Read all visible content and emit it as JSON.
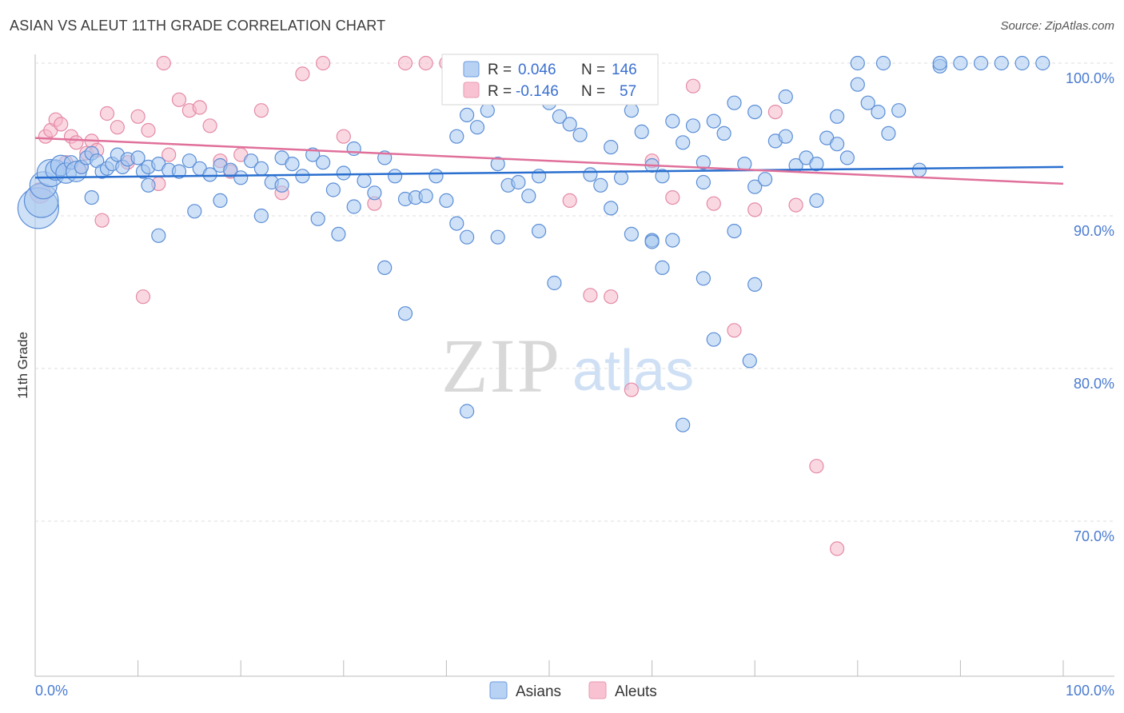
{
  "header": {
    "title": "ASIAN VS ALEUT 11TH GRADE CORRELATION CHART",
    "source": "Source: ZipAtlas.com"
  },
  "watermark": {
    "zip": "ZIP",
    "atlas": "atlas"
  },
  "legend_stats": {
    "asians": {
      "r_label": "R =",
      "r_value": "0.046",
      "n_label": "N =",
      "n_value": "146"
    },
    "aleuts": {
      "r_label": "R =",
      "r_value": "-0.146",
      "n_label": "N =",
      "n_value": "57"
    }
  },
  "legend_bottom": {
    "asians": "Asians",
    "aleuts": "Aleuts"
  },
  "colors": {
    "asians_fill": "#a8c8f0",
    "asians_stroke": "#5b8ed6",
    "asians_line": "#2a6fcf",
    "aleuts_fill": "#f6b8cb",
    "aleuts_stroke": "#e48aa6",
    "aleuts_line": "#e0709a",
    "tick_text": "#4a7bd0",
    "grid": "#dedede"
  },
  "chart_data": {
    "type": "scatter",
    "title": "ASIAN VS ALEUT 11TH GRADE CORRELATION CHART",
    "xlabel": "",
    "ylabel": "11th Grade",
    "xlim": [
      0,
      100
    ],
    "ylim": [
      60,
      100
    ],
    "x_ticks": [
      "0.0%",
      "100.0%"
    ],
    "y_ticks": [
      {
        "value": 100,
        "label": "100.0%"
      },
      {
        "value": 90,
        "label": "90.0%"
      },
      {
        "value": 80,
        "label": "80.0%"
      },
      {
        "value": 70,
        "label": "70.0%"
      }
    ],
    "grid": true,
    "legend_placement": "bottom-center",
    "series": [
      {
        "name": "Asians",
        "r": 0.046,
        "n": 146,
        "trend": [
          [
            0,
            92.5
          ],
          [
            100,
            93.2
          ]
        ],
        "points": [
          [
            0.3,
            90.5,
            3
          ],
          [
            0.6,
            91.0,
            2.5
          ],
          [
            0.8,
            92.0,
            2
          ],
          [
            1.5,
            92.8,
            2
          ],
          [
            2,
            93.0,
            1.5
          ],
          [
            2.5,
            93.3,
            1.5
          ],
          [
            3,
            92.8,
            1.5
          ],
          [
            3.5,
            93.5,
            1
          ],
          [
            4,
            92.9,
            1.5
          ],
          [
            4.5,
            93.2,
            1
          ],
          [
            5,
            93.8,
            1
          ],
          [
            5.5,
            94.1,
            1
          ],
          [
            6,
            93.6,
            1
          ],
          [
            6.5,
            92.9,
            1
          ],
          [
            7,
            93.1,
            1
          ],
          [
            7.5,
            93.4,
            1
          ],
          [
            8,
            94.0,
            1
          ],
          [
            8.5,
            93.2,
            1
          ],
          [
            9,
            93.7,
            1
          ],
          [
            10,
            93.8,
            1
          ],
          [
            10.5,
            92.9,
            1
          ],
          [
            11,
            93.2,
            1
          ],
          [
            12,
            93.4,
            1
          ],
          [
            13,
            93.0,
            1
          ],
          [
            14,
            92.9,
            1
          ],
          [
            15,
            93.6,
            1
          ],
          [
            16,
            93.1,
            1
          ],
          [
            17,
            92.7,
            1
          ],
          [
            18,
            93.3,
            1
          ],
          [
            19,
            93.0,
            1
          ],
          [
            20,
            92.5,
            1
          ],
          [
            21,
            93.6,
            1
          ],
          [
            22,
            93.1,
            1
          ],
          [
            23,
            92.2,
            1
          ],
          [
            24,
            93.8,
            1
          ],
          [
            25,
            93.4,
            1
          ],
          [
            26,
            92.6,
            1
          ],
          [
            27,
            94.0,
            1
          ],
          [
            28,
            93.5,
            1
          ],
          [
            29,
            91.7,
            1
          ],
          [
            30,
            92.8,
            1
          ],
          [
            31,
            94.4,
            1
          ],
          [
            32,
            92.3,
            1
          ],
          [
            33,
            91.5,
            1
          ],
          [
            34,
            93.8,
            1
          ],
          [
            35,
            92.6,
            1
          ],
          [
            36,
            91.1,
            1
          ],
          [
            37,
            91.2,
            1
          ],
          [
            38,
            91.3,
            1
          ],
          [
            39,
            92.6,
            1
          ],
          [
            40,
            91.0,
            1
          ],
          [
            41,
            95.2,
            1
          ],
          [
            42,
            96.6,
            1
          ],
          [
            43,
            95.8,
            1
          ],
          [
            44,
            96.9,
            1
          ],
          [
            45,
            93.4,
            1
          ],
          [
            46,
            92.0,
            1
          ],
          [
            47,
            92.2,
            1
          ],
          [
            48,
            91.3,
            1
          ],
          [
            49,
            92.6,
            1
          ],
          [
            50,
            97.4,
            1
          ],
          [
            51,
            96.5,
            1
          ],
          [
            52,
            96.0,
            1
          ],
          [
            53,
            95.3,
            1
          ],
          [
            54,
            92.7,
            1
          ],
          [
            55,
            92.0,
            1
          ],
          [
            56,
            94.5,
            1
          ],
          [
            57,
            92.5,
            1
          ],
          [
            58,
            96.9,
            1
          ],
          [
            59,
            95.5,
            1
          ],
          [
            60,
            93.3,
            1
          ],
          [
            61,
            92.6,
            1
          ],
          [
            62,
            96.2,
            1
          ],
          [
            63,
            94.8,
            1
          ],
          [
            64,
            95.9,
            1
          ],
          [
            65,
            92.2,
            1
          ],
          [
            66,
            96.2,
            1
          ],
          [
            67,
            95.4,
            1
          ],
          [
            68,
            97.4,
            1
          ],
          [
            69,
            93.4,
            1
          ],
          [
            70,
            91.9,
            1
          ],
          [
            71,
            92.4,
            1
          ],
          [
            72,
            94.9,
            1
          ],
          [
            73,
            97.8,
            1
          ],
          [
            74,
            93.3,
            1
          ],
          [
            75,
            93.8,
            1
          ],
          [
            76,
            93.4,
            1
          ],
          [
            77,
            95.1,
            1
          ],
          [
            78,
            94.7,
            1
          ],
          [
            79,
            93.8,
            1
          ],
          [
            80,
            98.6,
            1
          ],
          [
            81,
            97.4,
            1
          ],
          [
            82,
            96.8,
            1
          ],
          [
            83,
            95.4,
            1
          ],
          [
            84,
            96.9,
            1
          ],
          [
            86,
            93.0,
            1
          ],
          [
            88,
            99.8,
            1
          ],
          [
            90,
            100.0,
            1
          ],
          [
            92,
            100.0,
            1
          ],
          [
            94,
            100.0,
            1
          ],
          [
            96,
            100.0,
            1
          ],
          [
            98,
            100.0,
            1
          ],
          [
            5.5,
            91.2,
            1
          ],
          [
            12,
            88.7,
            1
          ],
          [
            11,
            92.0,
            1
          ],
          [
            15.5,
            90.3,
            1
          ],
          [
            18,
            91.0,
            1
          ],
          [
            22,
            90.0,
            1
          ],
          [
            24,
            92.0,
            1
          ],
          [
            27.5,
            89.8,
            1
          ],
          [
            29.5,
            88.8,
            1
          ],
          [
            31,
            90.6,
            1
          ],
          [
            34,
            86.6,
            1
          ],
          [
            36,
            83.6,
            1
          ],
          [
            41,
            89.5,
            1
          ],
          [
            42,
            88.6,
            1
          ],
          [
            45,
            88.6,
            1
          ],
          [
            49,
            89.0,
            1
          ],
          [
            50.5,
            85.6,
            1
          ],
          [
            56,
            90.5,
            1
          ],
          [
            58,
            88.8,
            1
          ],
          [
            60,
            88.4,
            1
          ],
          [
            61,
            86.6,
            1
          ],
          [
            62,
            88.4,
            1
          ],
          [
            65,
            85.9,
            1
          ],
          [
            68,
            89.0,
            1
          ],
          [
            70,
            85.5,
            1
          ],
          [
            66,
            81.9,
            1
          ],
          [
            69.5,
            80.5,
            1
          ],
          [
            42,
            77.2,
            1
          ],
          [
            63,
            76.3,
            1
          ],
          [
            60,
            88.3,
            1
          ],
          [
            65,
            93.5,
            1
          ],
          [
            70,
            96.8,
            1
          ],
          [
            73,
            95.2,
            1
          ],
          [
            76,
            91.0,
            1
          ],
          [
            82.5,
            100.0,
            1
          ],
          [
            88,
            100.0,
            1
          ],
          [
            78,
            96.5,
            1
          ],
          [
            80,
            100.0,
            1
          ]
        ]
      },
      {
        "name": "Aleuts",
        "r": -0.146,
        "n": 57,
        "trend": [
          [
            0,
            95.1
          ],
          [
            100,
            92.1
          ]
        ],
        "points": [
          [
            0.5,
            91.5,
            1.5
          ],
          [
            1,
            95.2,
            1
          ],
          [
            1.5,
            95.6,
            1
          ],
          [
            2,
            96.3,
            1
          ],
          [
            2.5,
            96.0,
            1
          ],
          [
            3,
            93.5,
            1
          ],
          [
            3.5,
            95.2,
            1
          ],
          [
            4,
            94.8,
            1
          ],
          [
            4.5,
            93.2,
            1
          ],
          [
            5,
            94.1,
            1
          ],
          [
            5.5,
            94.9,
            1
          ],
          [
            6,
            94.3,
            1
          ],
          [
            7,
            96.7,
            1
          ],
          [
            8,
            95.8,
            1
          ],
          [
            9,
            93.5,
            1
          ],
          [
            10,
            96.5,
            1
          ],
          [
            11,
            95.6,
            1
          ],
          [
            12,
            92.1,
            1
          ],
          [
            13,
            94.0,
            1
          ],
          [
            14,
            97.6,
            1
          ],
          [
            15,
            96.9,
            1
          ],
          [
            16,
            97.1,
            1
          ],
          [
            17,
            95.9,
            1
          ],
          [
            18,
            93.6,
            1
          ],
          [
            19,
            92.9,
            1
          ],
          [
            20,
            94.0,
            1
          ],
          [
            22,
            96.9,
            1
          ],
          [
            24,
            91.5,
            1
          ],
          [
            26,
            99.3,
            1
          ],
          [
            28,
            100.0,
            1
          ],
          [
            30,
            95.2,
            1
          ],
          [
            33,
            90.8,
            1
          ],
          [
            36,
            100.0,
            1
          ],
          [
            38,
            100.0,
            1
          ],
          [
            40,
            100.0,
            1
          ],
          [
            42,
            100.0,
            1
          ],
          [
            44,
            100.0,
            1
          ],
          [
            46,
            100.0,
            1
          ],
          [
            48,
            100.0,
            1
          ],
          [
            50,
            100.0,
            1
          ],
          [
            52,
            91.0,
            1
          ],
          [
            54,
            84.8,
            1
          ],
          [
            56,
            84.7,
            1
          ],
          [
            58,
            78.6,
            1
          ],
          [
            60,
            93.6,
            1
          ],
          [
            62,
            91.2,
            1
          ],
          [
            64,
            98.5,
            1
          ],
          [
            66,
            90.8,
            1
          ],
          [
            68,
            82.5,
            1
          ],
          [
            70,
            90.4,
            1
          ],
          [
            72,
            96.8,
            1
          ],
          [
            74,
            90.7,
            1
          ],
          [
            76,
            73.6,
            1
          ],
          [
            78,
            68.2,
            1
          ],
          [
            6.5,
            89.7,
            1
          ],
          [
            10.5,
            84.7,
            1
          ],
          [
            12.5,
            100.0,
            1
          ]
        ]
      }
    ]
  }
}
